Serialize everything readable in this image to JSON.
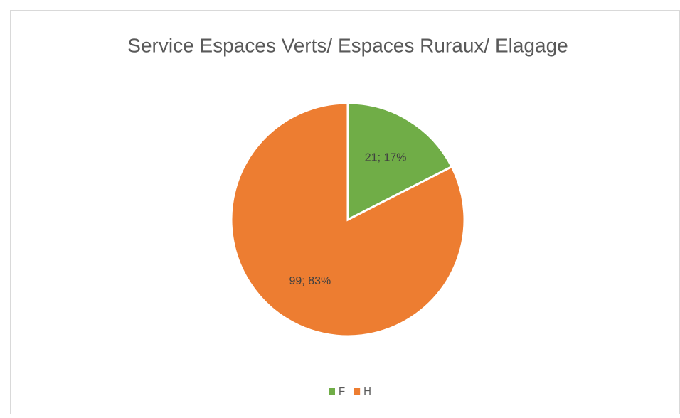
{
  "chart_data": {
    "type": "pie",
    "title": "Service Espaces Verts/ Espaces Ruraux/ Elagage",
    "categories": [
      "F",
      "H"
    ],
    "values": [
      21,
      99
    ],
    "value_labels": [
      "21; 17%",
      "99; 83%"
    ],
    "colors": [
      "#70ad47",
      "#ed7d31"
    ],
    "legend": "bottom"
  }
}
